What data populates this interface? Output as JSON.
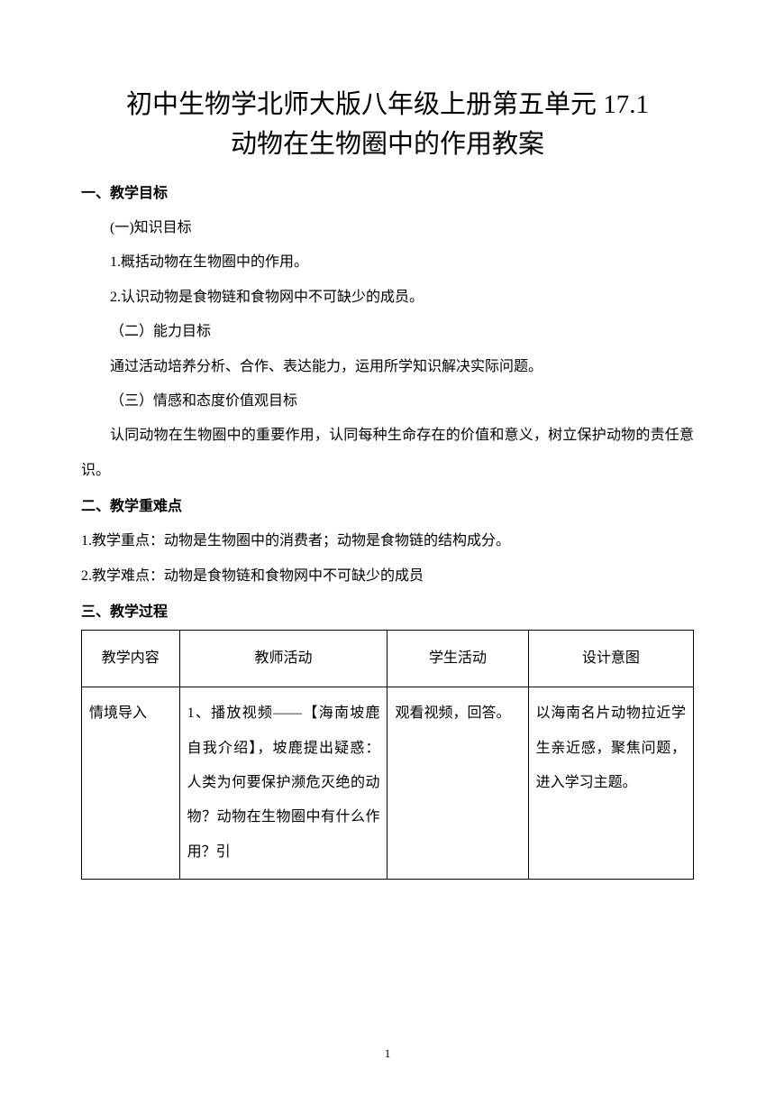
{
  "title_line1": "初中生物学北师大版八年级上册第五单元 17.1",
  "title_line2": "动物在生物圈中的作用教案",
  "section1": {
    "header": "一、教学目标",
    "sub1": "(一)知识目标",
    "item1": "1.概括动物在生物圈中的作用。",
    "item2": "2.认识动物是食物链和食物网中不可缺少的成员。",
    "sub2": "（二）能力目标",
    "item3": "通过活动培养分析、合作、表达能力，运用所学知识解决实际问题。",
    "sub3": "（三）情感和态度价值观目标",
    "item4": "认同动物在生物圈中的重要作用，认同每种生命存在的价值和意义，树立保护动物的责任意识。"
  },
  "section2": {
    "header": "二、教学重难点",
    "item1": "1.教学重点：动物是生物圈中的消费者；动物是食物链的结构成分。",
    "item2": "2.教学难点：动物是食物链和食物网中不可缺少的成员"
  },
  "section3": {
    "header": "三、教学过程",
    "table": {
      "headers": [
        "教学内容",
        "教师活动",
        "学生活动",
        "设计意图"
      ],
      "row1": {
        "col1": "情境导入",
        "col2": "1、播放视频——【海南坡鹿自我介绍】，坡鹿提出疑惑：人类为何要保护濒危灭绝的动物？动物在生物圈中有什么作用？引",
        "col3": "观看视频，回答。",
        "col4": "以海南名片动物拉近学生亲近感，聚焦问题，进入学习主题。"
      }
    }
  },
  "page_number": "1",
  "colors": {
    "text": "#000000",
    "background": "#ffffff",
    "border": "#000000"
  },
  "fonts": {
    "title_size": 29,
    "body_size": 16,
    "title_family": "SimSun",
    "body_family": "SimSun",
    "header_family": "SimHei"
  }
}
